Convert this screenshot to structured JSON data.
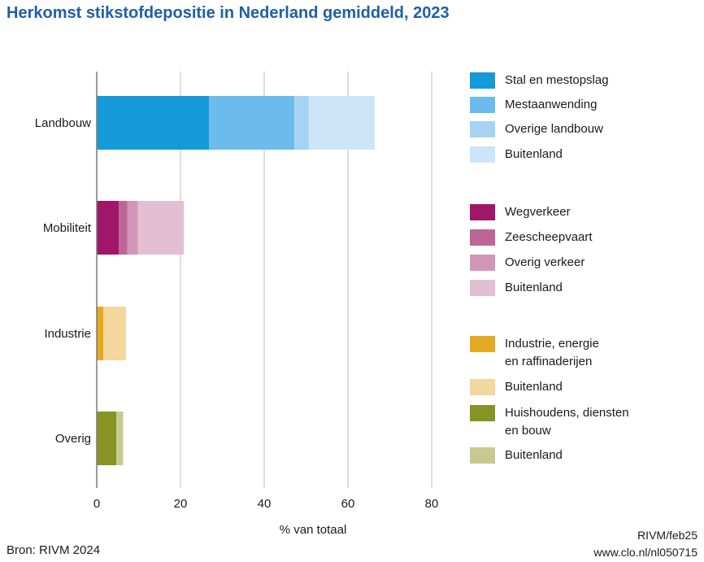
{
  "title": "Herkomst stikstofdepositie in Nederland gemiddeld, 2023",
  "source": "Bron: RIVM 2024",
  "credit": {
    "line1": "RIVM/feb25",
    "line2": "www.clo.nl/nl050715"
  },
  "chart_data": {
    "type": "bar",
    "orientation": "horizontal",
    "stacked": true,
    "title": "Herkomst stikstofdepositie in Nederland gemiddeld, 2023",
    "xlabel": "% van totaal",
    "ylabel": "",
    "xlim": [
      0,
      80
    ],
    "xticks": [
      "0",
      "20",
      "40",
      "60",
      "80"
    ],
    "grid": true,
    "legend_position": "right",
    "categories": [
      "Landbouw",
      "Mobiliteit",
      "Industrie",
      "Overig"
    ],
    "series": [
      {
        "name": "Stal en mestopslag",
        "category": "Landbouw",
        "value": 26.8,
        "color": "#1599d9"
      },
      {
        "name": "Mestaanwending",
        "category": "Landbouw",
        "value": 20.4,
        "color": "#6cbbed"
      },
      {
        "name": "Overige landbouw",
        "category": "Landbouw",
        "value": 3.5,
        "color": "#a6d3f3"
      },
      {
        "name": "Buitenland",
        "category": "Landbouw",
        "value": 15.7,
        "color": "#cde5f8"
      },
      {
        "name": "Wegverkeer",
        "category": "Mobiliteit",
        "value": 5.3,
        "color": "#a0176a"
      },
      {
        "name": "Zeescheepvaart",
        "category": "Mobiliteit",
        "value": 2.0,
        "color": "#bc6596"
      },
      {
        "name": "Overig verkeer",
        "category": "Mobiliteit",
        "value": 2.5,
        "color": "#d296b8"
      },
      {
        "name": "Buitenland",
        "category": "Mobiliteit",
        "value": 11.0,
        "color": "#e3bfd4"
      },
      {
        "name": "Industrie, energie\nen raffinaderijen",
        "category": "Industrie",
        "value": 1.6,
        "color": "#e5a922"
      },
      {
        "name": "Buitenland",
        "category": "Industrie",
        "value": 5.4,
        "color": "#f4d79c"
      },
      {
        "name": "Huishoudens, diensten\nen bouw",
        "category": "Overig",
        "value": 4.7,
        "color": "#879322"
      },
      {
        "name": "Buitenland",
        "category": "Overig",
        "value": 1.6,
        "color": "#c7ca8e"
      }
    ]
  }
}
